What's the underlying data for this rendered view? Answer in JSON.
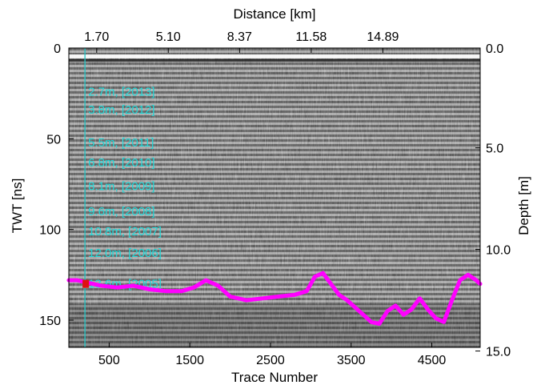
{
  "chart_data": {
    "type": "line",
    "title": "",
    "xlabel": "Trace Number",
    "ylabel": "TWT [ns]",
    "x2label": "Distance [km]",
    "y2label": "Depth [m]",
    "xlim": [
      0,
      5100
    ],
    "ylim": [
      165,
      0
    ],
    "x_ticks": [
      500,
      1500,
      2500,
      3500,
      4500
    ],
    "x_tick_labels": [
      "500",
      "1500",
      "2500",
      "3500",
      "4500"
    ],
    "y_ticks": [
      0,
      50,
      100,
      150
    ],
    "y_tick_labels": [
      "0",
      "50",
      "100",
      "150"
    ],
    "x2_ticks": [
      1.7,
      5.1,
      8.37,
      11.58,
      14.89
    ],
    "x2_tick_labels": [
      "1.70",
      "5.10",
      "8.37",
      "11.58",
      "14.89"
    ],
    "x2_tick_positions_trace": [
      345,
      1233,
      2117,
      3005,
      3893
    ],
    "y2_ticks": [
      0.0,
      5.0,
      10.0,
      15.0
    ],
    "y2_tick_labels": [
      "0.0",
      "5.0",
      "10.0",
      "15.0"
    ],
    "y2_tick_positions_twt": [
      0,
      55,
      111,
      167
    ],
    "grid": false,
    "background": "GPR radargram (grayscale)",
    "marker_trace": 200,
    "layer_labels": [
      {
        "text": "2.7m, [2013]",
        "twt": 24
      },
      {
        "text": "3.8m, [2012]",
        "twt": 34
      },
      {
        "text": "5.5m, [2011]",
        "twt": 52
      },
      {
        "text": "6.8m, [2010]",
        "twt": 63
      },
      {
        "text": "8.1m, [2009]",
        "twt": 76
      },
      {
        "text": "9.6m, [2008]",
        "twt": 90
      },
      {
        "text": "10.8m, [2007]",
        "twt": 101
      },
      {
        "text": "12.0m, [2006]",
        "twt": 113
      },
      {
        "text": "13.6m, [2005]",
        "twt": 130
      }
    ],
    "series": [
      {
        "name": "",
        "color": "#ff00ff",
        "x": [
          0,
          100,
          200,
          300,
          400,
          600,
          800,
          1000,
          1200,
          1400,
          1550,
          1700,
          1850,
          2000,
          2200,
          2400,
          2600,
          2800,
          2950,
          3050,
          3150,
          3250,
          3350,
          3450,
          3550,
          3650,
          3750,
          3850,
          3950,
          4050,
          4150,
          4250,
          4350,
          4450,
          4550,
          4650,
          4750,
          4850,
          4950,
          5050,
          5100
        ],
        "y": [
          128,
          128,
          129,
          130,
          131,
          132,
          131,
          133,
          134,
          134,
          132,
          128,
          131,
          137,
          139,
          138,
          137,
          136,
          134,
          126,
          124,
          130,
          136,
          139,
          143,
          147,
          151,
          152,
          145,
          142,
          147,
          144,
          138,
          144,
          149,
          151,
          139,
          128,
          125,
          128,
          130
        ]
      }
    ]
  }
}
